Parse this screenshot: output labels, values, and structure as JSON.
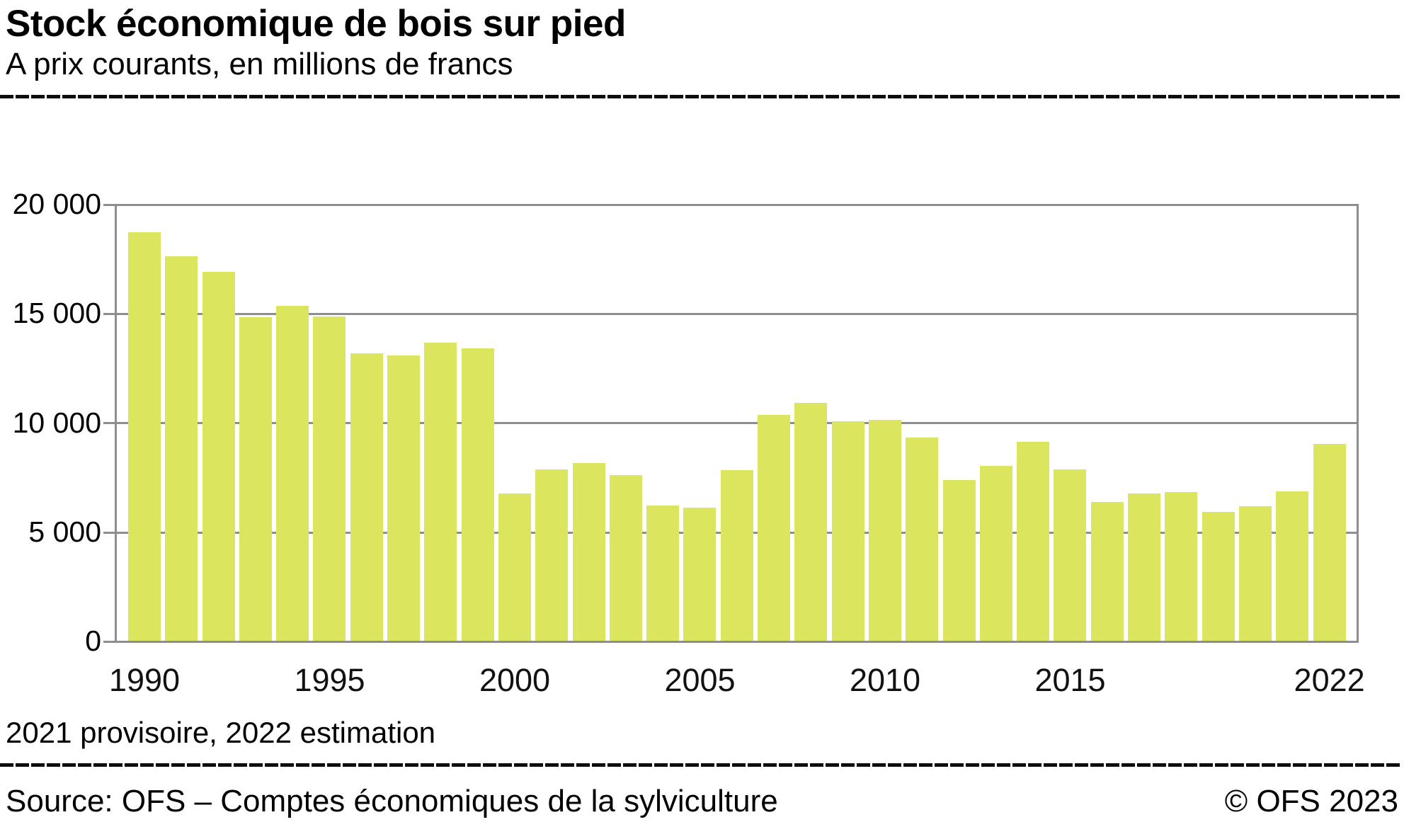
{
  "header": {
    "title": "Stock économique de bois sur pied",
    "subtitle": "A prix courants, en millions de francs"
  },
  "chart_data": {
    "type": "bar",
    "title": "Stock économique de bois sur pied",
    "subtitle": "A prix courants, en millions de francs",
    "unit": "millions de francs",
    "x": [
      1990,
      1991,
      1992,
      1993,
      1994,
      1995,
      1996,
      1997,
      1998,
      1999,
      2000,
      2001,
      2002,
      2003,
      2004,
      2005,
      2006,
      2007,
      2008,
      2009,
      2010,
      2011,
      2012,
      2013,
      2014,
      2015,
      2016,
      2017,
      2018,
      2019,
      2020,
      2021,
      2022
    ],
    "values": [
      18700,
      17600,
      16900,
      14800,
      15350,
      14850,
      13150,
      13050,
      13650,
      13400,
      6750,
      7850,
      8150,
      7600,
      6200,
      6100,
      7800,
      10350,
      10900,
      10050,
      10100,
      9300,
      7350,
      8000,
      9100,
      7850,
      6350,
      6750,
      6800,
      5900,
      6150,
      6850,
      9000
    ],
    "ylim": [
      0,
      20000
    ],
    "yticks": [
      0,
      5000,
      10000,
      15000,
      20000
    ],
    "ytick_labels": [
      "0",
      "5 000",
      "10 000",
      "15 000",
      "20 000"
    ],
    "xticks": [
      {
        "index": 0,
        "label": "1990"
      },
      {
        "index": 5,
        "label": "1995"
      },
      {
        "index": 10,
        "label": "2000"
      },
      {
        "index": 15,
        "label": "2005"
      },
      {
        "index": 20,
        "label": "2010"
      },
      {
        "index": 25,
        "label": "2015"
      },
      {
        "index": 32,
        "label": "2022"
      }
    ],
    "grid": true,
    "legend": false,
    "colors": {
      "bar": "#dbe65e",
      "grid": "#8e8e8e",
      "text": "#000000"
    }
  },
  "footer": {
    "note": "2021 provisoire, 2022 estimation",
    "source": "Source: OFS – Comptes économiques de la sylviculture",
    "copyright": "© OFS 2023"
  }
}
